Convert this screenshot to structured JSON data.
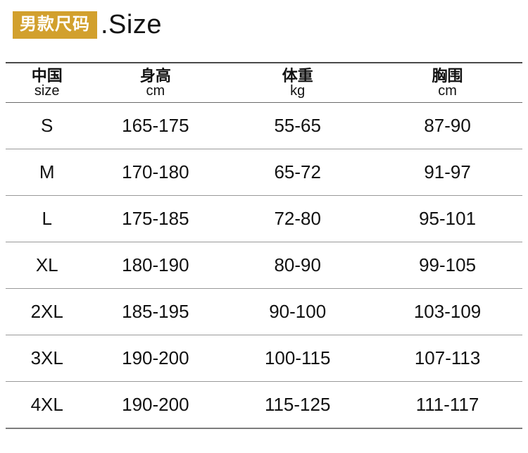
{
  "header": {
    "badge_label": "男款尺码",
    "badge_bg": "#d2a02d",
    "badge_text_color": "#ffffff",
    "title": ".Size"
  },
  "table": {
    "columns": [
      {
        "zh": "中国",
        "en": "size"
      },
      {
        "zh": "身高",
        "en": "cm"
      },
      {
        "zh": "体重",
        "en": "kg"
      },
      {
        "zh": "胸围",
        "en": "cm"
      }
    ],
    "rows": [
      {
        "size": "S",
        "height": "165-175",
        "weight": "55-65",
        "chest": "87-90"
      },
      {
        "size": "M",
        "height": "170-180",
        "weight": "65-72",
        "chest": "91-97"
      },
      {
        "size": "L",
        "height": "175-185",
        "weight": "72-80",
        "chest": "95-101"
      },
      {
        "size": "XL",
        "height": "180-190",
        "weight": "80-90",
        "chest": "99-105"
      },
      {
        "size": "2XL",
        "height": "185-195",
        "weight": "90-100",
        "chest": "103-109"
      },
      {
        "size": "3XL",
        "height": "190-200",
        "weight": "100-115",
        "chest": "107-113"
      },
      {
        "size": "4XL",
        "height": "190-200",
        "weight": "115-125",
        "chest": "111-117"
      }
    ]
  },
  "chart_data": {
    "type": "table",
    "title": "男款尺码 .Size",
    "columns": [
      "中国 size",
      "身高 cm",
      "体重 kg",
      "胸围 cm"
    ],
    "rows": [
      [
        "S",
        "165-175",
        "55-65",
        "87-90"
      ],
      [
        "M",
        "170-180",
        "65-72",
        "91-97"
      ],
      [
        "L",
        "175-185",
        "72-80",
        "95-101"
      ],
      [
        "XL",
        "180-190",
        "80-90",
        "99-105"
      ],
      [
        "2XL",
        "185-195",
        "90-100",
        "103-109"
      ],
      [
        "3XL",
        "190-200",
        "100-115",
        "107-113"
      ],
      [
        "4XL",
        "190-200",
        "115-125",
        "111-117"
      ]
    ]
  }
}
